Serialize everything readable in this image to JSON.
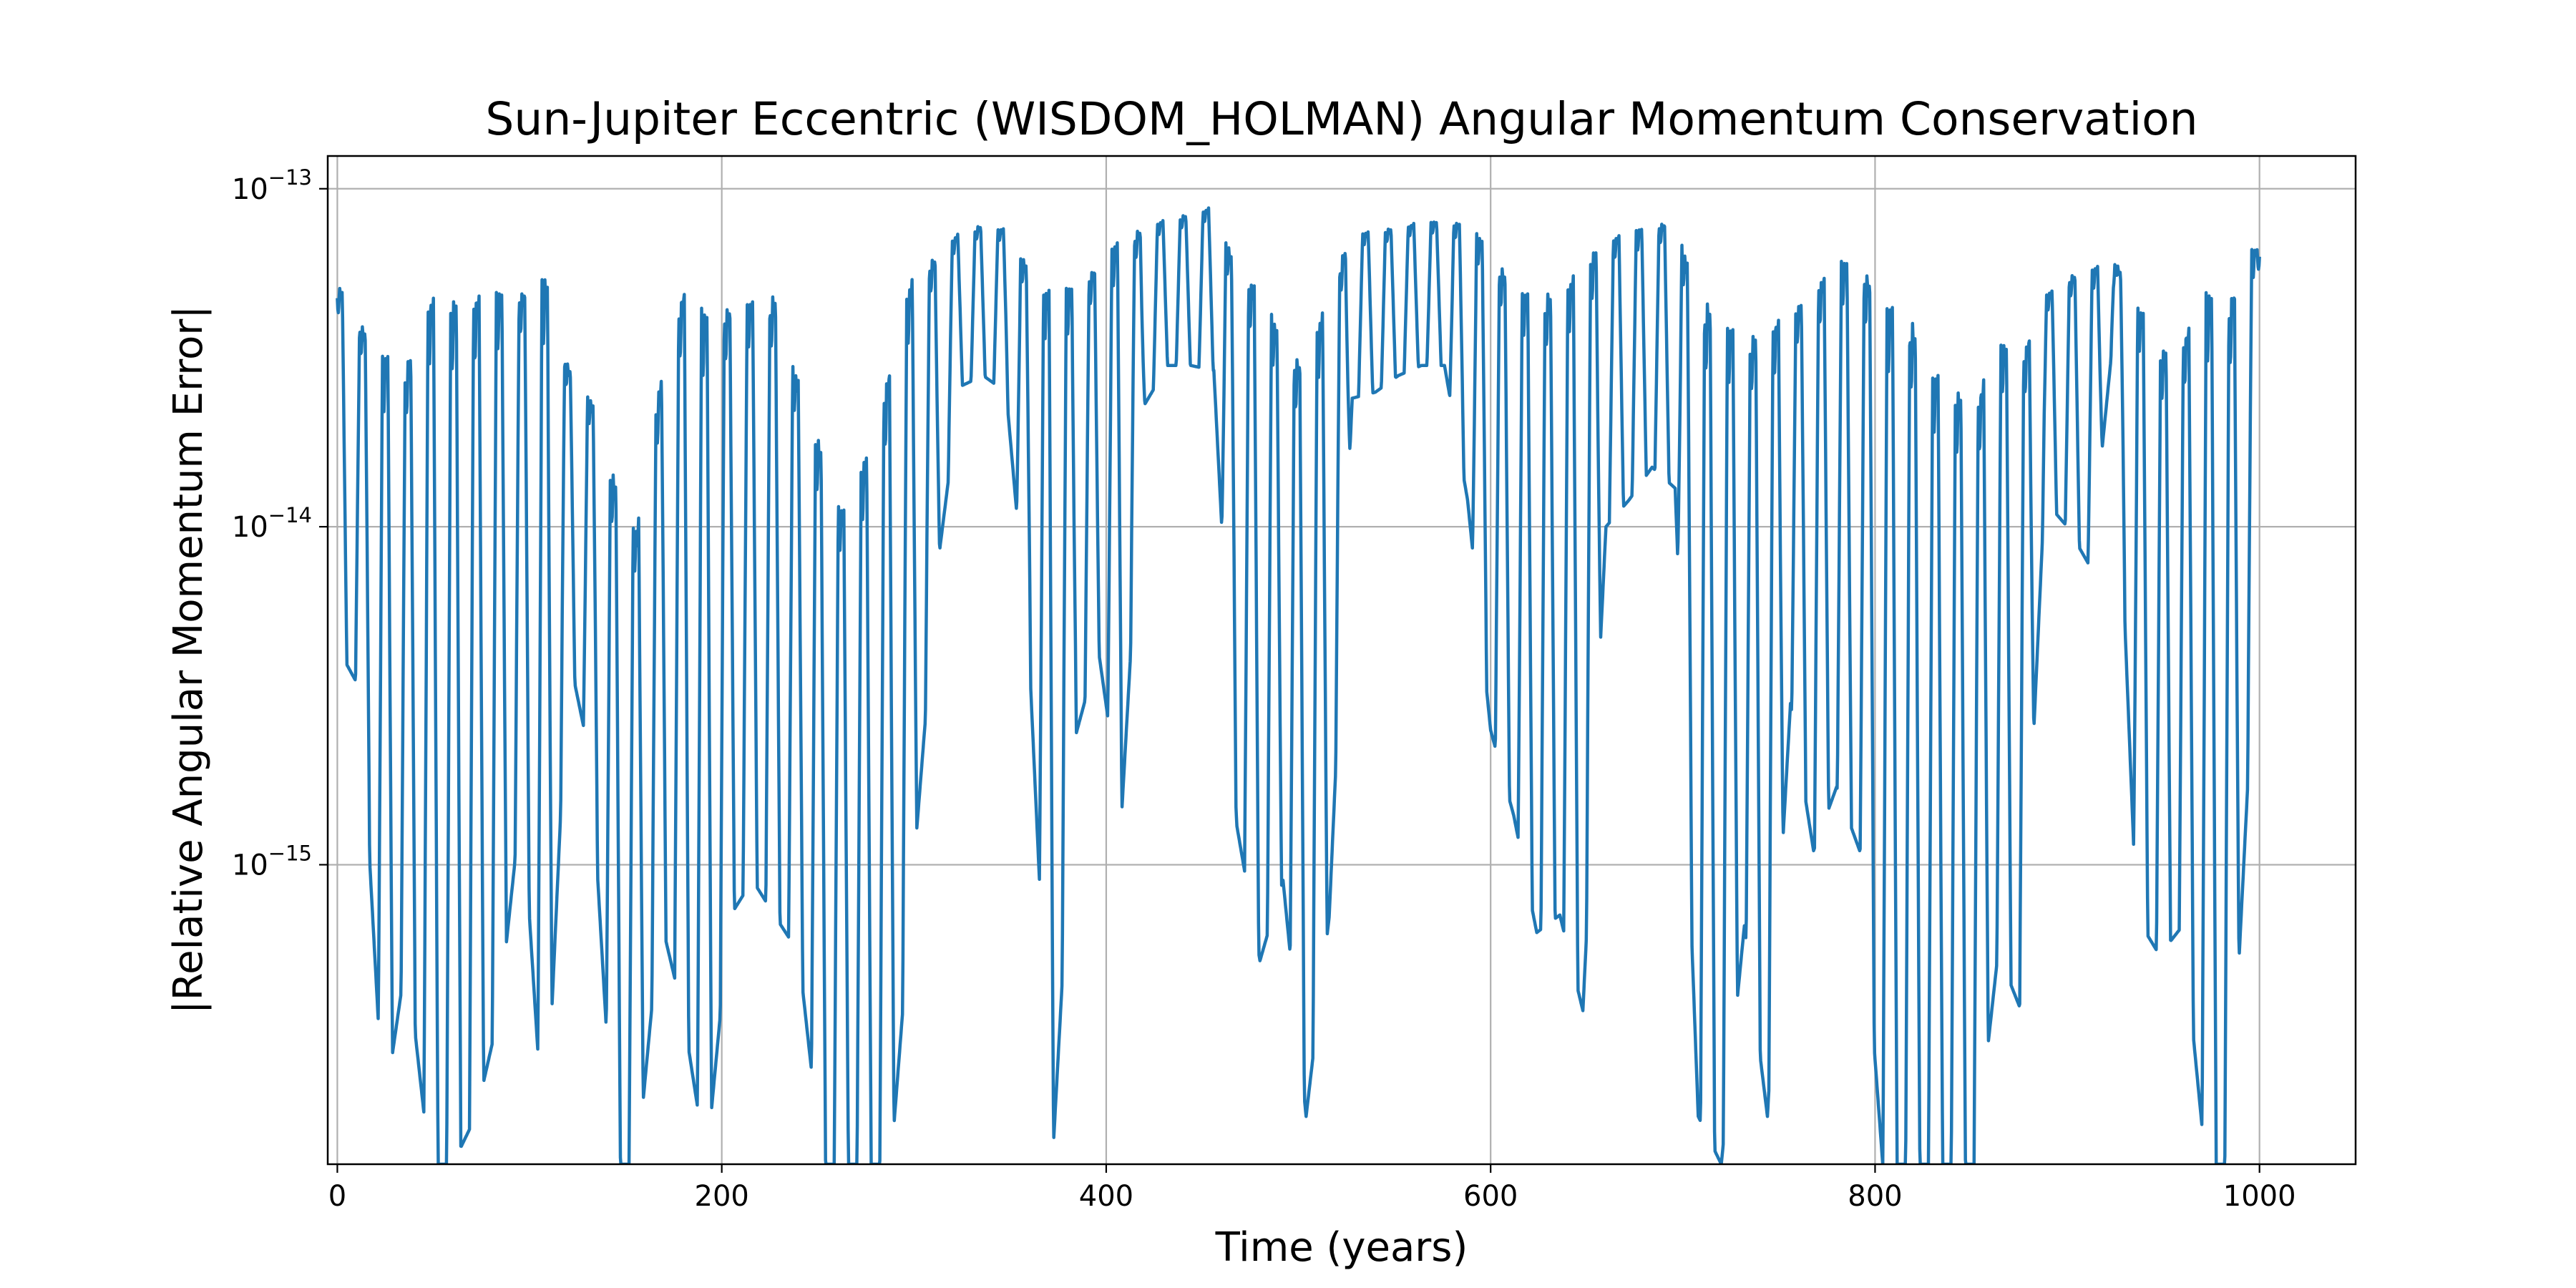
{
  "chart_data": {
    "type": "line",
    "title": "Sun-Jupiter Eccentric (WISDOM_HOLMAN) Angular Momentum Conservation",
    "xlabel": "Time (years)",
    "ylabel": "|Relative Angular Momentum Error|",
    "xlim": [
      -5,
      1050
    ],
    "ylim": [
      1.3e-16,
      1.25e-13
    ],
    "yscale": "log",
    "grid": true,
    "line_color": "#1f77b4",
    "x_ticks": [
      {
        "value": 0,
        "label": "0"
      },
      {
        "value": 200,
        "label": "200"
      },
      {
        "value": 400,
        "label": "400"
      },
      {
        "value": 600,
        "label": "600"
      },
      {
        "value": 800,
        "label": "800"
      },
      {
        "value": 1000,
        "label": "1000"
      }
    ],
    "y_ticks": [
      {
        "value": 1e-13,
        "base": "10",
        "exp": "−13"
      },
      {
        "value": 1e-14,
        "base": "10",
        "exp": "−14"
      },
      {
        "value": 1e-15,
        "base": "10",
        "exp": "−15"
      }
    ],
    "series": [
      {
        "oscillation_period_years": 11.86,
        "x": [
          0,
          12,
          24,
          36,
          48,
          60,
          72,
          84,
          96,
          108,
          120,
          132,
          144,
          156,
          168,
          180,
          192,
          204,
          216,
          228,
          240,
          252,
          264,
          276,
          288,
          300,
          312,
          324,
          336,
          348,
          360,
          372,
          384,
          396,
          408,
          420,
          432,
          444,
          456,
          468,
          480,
          492,
          504,
          516,
          528,
          540,
          552,
          564,
          576,
          588,
          600,
          612,
          624,
          636,
          648,
          660,
          672,
          684,
          696,
          708,
          720,
          732,
          744,
          756,
          768,
          780,
          792,
          804,
          816,
          828,
          840,
          852,
          864,
          876,
          888,
          900,
          912,
          924,
          936,
          948,
          960,
          972,
          984,
          996,
          1000
        ],
        "envelope_upper": [
          5.3e-14,
          4e-14,
          3.3e-14,
          3e-14,
          4.8e-14,
          4.7e-14,
          4.9e-14,
          5e-14,
          5e-14,
          5.6e-14,
          3e-14,
          2.4e-14,
          1.4e-14,
          1e-14,
          2.7e-14,
          5.1e-14,
          4.3e-14,
          4.5e-14,
          4.7e-14,
          4.8e-14,
          2.7e-14,
          1.7e-14,
          1.1e-14,
          1.7e-14,
          3.1e-14,
          5.8e-14,
          6.3e-14,
          7.5e-14,
          7.8e-14,
          7.6e-14,
          5.8e-14,
          5e-14,
          5.2e-14,
          6e-14,
          7.3e-14,
          7.6e-14,
          8.2e-14,
          8.4e-14,
          8.9e-14,
          5.8e-14,
          5.2e-14,
          3.5e-14,
          3e-14,
          5.1e-14,
          7.4e-14,
          7.5e-14,
          7.7e-14,
          8e-14,
          8e-14,
          8e-14,
          6.6e-14,
          5.2e-14,
          4.8e-14,
          5e-14,
          6e-14,
          7.2e-14,
          7.4e-14,
          7.9e-14,
          8e-14,
          4.8e-14,
          4.3e-14,
          3.5e-14,
          4e-14,
          4.2e-14,
          5.2e-14,
          6.1e-14,
          6.2e-14,
          4.6e-14,
          4.5e-14,
          3e-14,
          2.6e-14,
          2.3e-14,
          3.6e-14,
          3.2e-14,
          4.8e-14,
          5.5e-14,
          5.8e-14,
          6.2e-14,
          4.8e-14,
          3.3e-14,
          3.6e-14,
          5e-14,
          4.7e-14,
          6.7e-14,
          6.6e-14
        ],
        "envelope_lower": [
          4.4e-15,
          3.3e-15,
          1.8e-16,
          5.4e-16,
          1.3e-16,
          1.3e-16,
          1.8e-16,
          3.6e-16,
          1.6e-15,
          1.3e-16,
          4.3e-15,
          2e-15,
          1.3e-16,
          1.3e-16,
          7e-16,
          3.6e-16,
          1.3e-16,
          7e-16,
          9e-16,
          7e-16,
          5.5e-16,
          1.3e-16,
          1.3e-16,
          1.3e-16,
          1.3e-16,
          1e-15,
          7.4e-15,
          2.6e-14,
          2.8e-14,
          2.5e-14,
          4.1e-15,
          1.3e-16,
          2.4e-15,
          4.3e-15,
          1.4e-15,
          2.3e-14,
          3e-14,
          3e-14,
          2.9e-14,
          1.3e-15,
          5.2e-16,
          9e-16,
          1.8e-16,
          7e-16,
          2.4e-14,
          2.5e-14,
          2.8e-14,
          3e-14,
          3e-14,
          1.2e-14,
          2.5e-15,
          1.4e-15,
          6.3e-16,
          7.1e-16,
          3.7e-16,
          1e-14,
          1.2e-14,
          1.5e-14,
          1.3e-14,
          1.8e-16,
          1.3e-16,
          6.6e-16,
          1.8e-16,
          3e-15,
          1.1e-15,
          1.7e-15,
          1.1e-15,
          1.3e-16,
          1.3e-16,
          1.3e-16,
          1.3e-16,
          1.3e-16,
          5.5e-16,
          3.7e-16,
          1.2e-14,
          1e-14,
          7.6e-15,
          3.7e-14,
          7e-16,
          5.4e-16,
          6.6e-16,
          1.3e-16,
          1.3e-16,
          3e-15,
          6e-14
        ]
      }
    ]
  }
}
